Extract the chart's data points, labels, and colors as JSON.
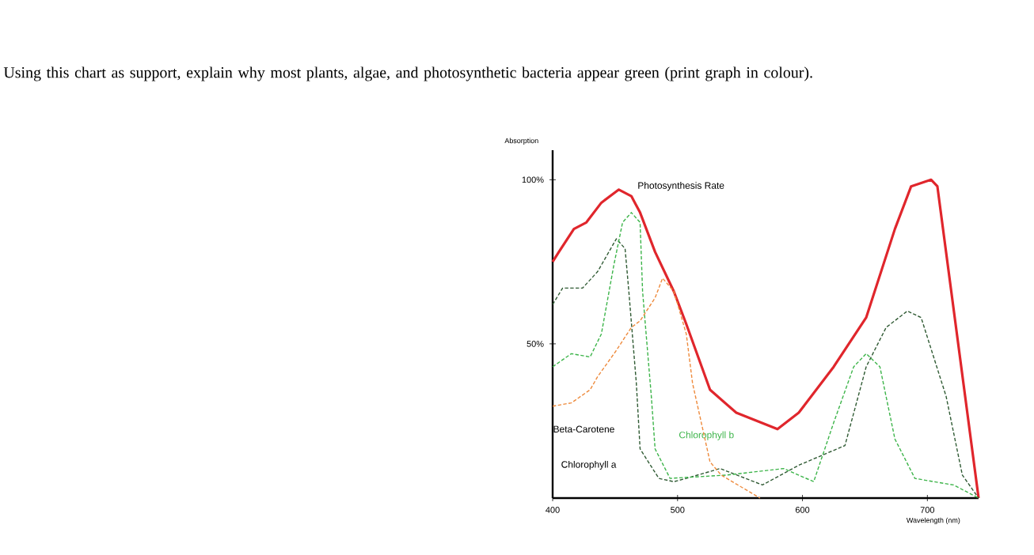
{
  "chart_data": {
    "type": "line",
    "title": "Using this chart as support, explain why most plants, algae, and photosynthetic bacteria appear green (print graph in colour).",
    "xlabel": "Wavelength (nm)",
    "ylabel": "Absorption",
    "xlim": [
      400,
      741
    ],
    "ylim": [
      3,
      109
    ],
    "xticks": [
      400,
      500,
      600,
      700
    ],
    "yticks": [
      {
        "value": 50,
        "label": "50%"
      },
      {
        "value": 100,
        "label": "100%"
      }
    ],
    "grid": false,
    "marker": "none",
    "series": [
      {
        "name": "Photosynthesis Rate",
        "color": "#e0262c",
        "line_style": "solid",
        "x": [
          400,
          405,
          417,
          427,
          439,
          453,
          463,
          470,
          482,
          497,
          507,
          526,
          547,
          580,
          597,
          625,
          651,
          674,
          687,
          703,
          708,
          741
        ],
        "values": [
          75,
          78,
          85,
          87,
          93,
          97,
          95,
          90,
          78,
          66,
          56,
          36,
          29,
          24,
          29,
          43,
          58,
          85,
          98,
          100,
          98,
          3
        ]
      },
      {
        "name": "Chlorophyll a",
        "color": "#2f5a33",
        "line_style": "dashed",
        "x": [
          400,
          408,
          424,
          436,
          451,
          458,
          461,
          467,
          470,
          485,
          497,
          507,
          534,
          568,
          597,
          634,
          651,
          667,
          684,
          695,
          715,
          728,
          741
        ],
        "values": [
          62,
          67,
          67,
          72,
          82,
          79,
          66,
          38,
          18,
          9,
          8,
          9,
          12,
          7,
          13,
          19,
          43,
          55,
          60,
          58,
          34,
          10,
          3
        ]
      },
      {
        "name": "Chlorophyll b",
        "color": "#3cb449",
        "line_style": "dashed",
        "x": [
          400,
          415,
          430,
          439,
          449,
          456,
          463,
          470,
          472,
          479,
          482,
          494,
          539,
          585,
          609,
          625,
          641,
          651,
          662,
          674,
          690,
          705,
          721,
          741
        ],
        "values": [
          43,
          47,
          46,
          53,
          74,
          87,
          90,
          87,
          66,
          34,
          18,
          9,
          10,
          12,
          8,
          26,
          43,
          47,
          43,
          21,
          9,
          8,
          7,
          3
        ]
      },
      {
        "name": "Beta-Carotene",
        "color": "#ee8a3c",
        "line_style": "dashed",
        "x": [
          400,
          415,
          430,
          436,
          451,
          463,
          470,
          482,
          488,
          497,
          507,
          512,
          526,
          535,
          566
        ],
        "values": [
          31,
          32,
          36,
          40,
          48,
          55,
          57,
          64,
          70,
          66,
          53,
          38,
          14,
          10,
          3
        ]
      }
    ]
  }
}
